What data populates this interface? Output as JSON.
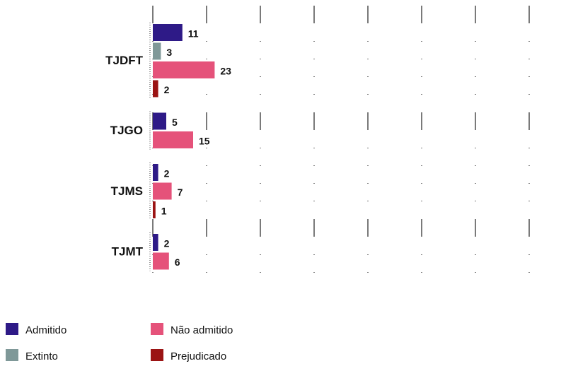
{
  "chart_data": {
    "type": "bar",
    "orientation": "horizontal",
    "categories": [
      "TJDFT",
      "TJGO",
      "TJMS",
      "TJMT"
    ],
    "series": [
      {
        "name": "Admitido",
        "color": "#2e1a87",
        "values": [
          11,
          5,
          2,
          2
        ]
      },
      {
        "name": "Extinto",
        "color": "#7f9898",
        "values": [
          3,
          null,
          null,
          null
        ]
      },
      {
        "name": "Não admitido",
        "color": "#e5527a",
        "values": [
          23,
          15,
          7,
          6
        ]
      },
      {
        "name": "Prejudicado",
        "color": "#9b1414",
        "values": [
          2,
          null,
          1,
          null
        ]
      }
    ],
    "xlim": [
      0,
      140
    ],
    "xticks": [
      0,
      20,
      40,
      60,
      80,
      100,
      120,
      140
    ],
    "grid": true
  }
}
